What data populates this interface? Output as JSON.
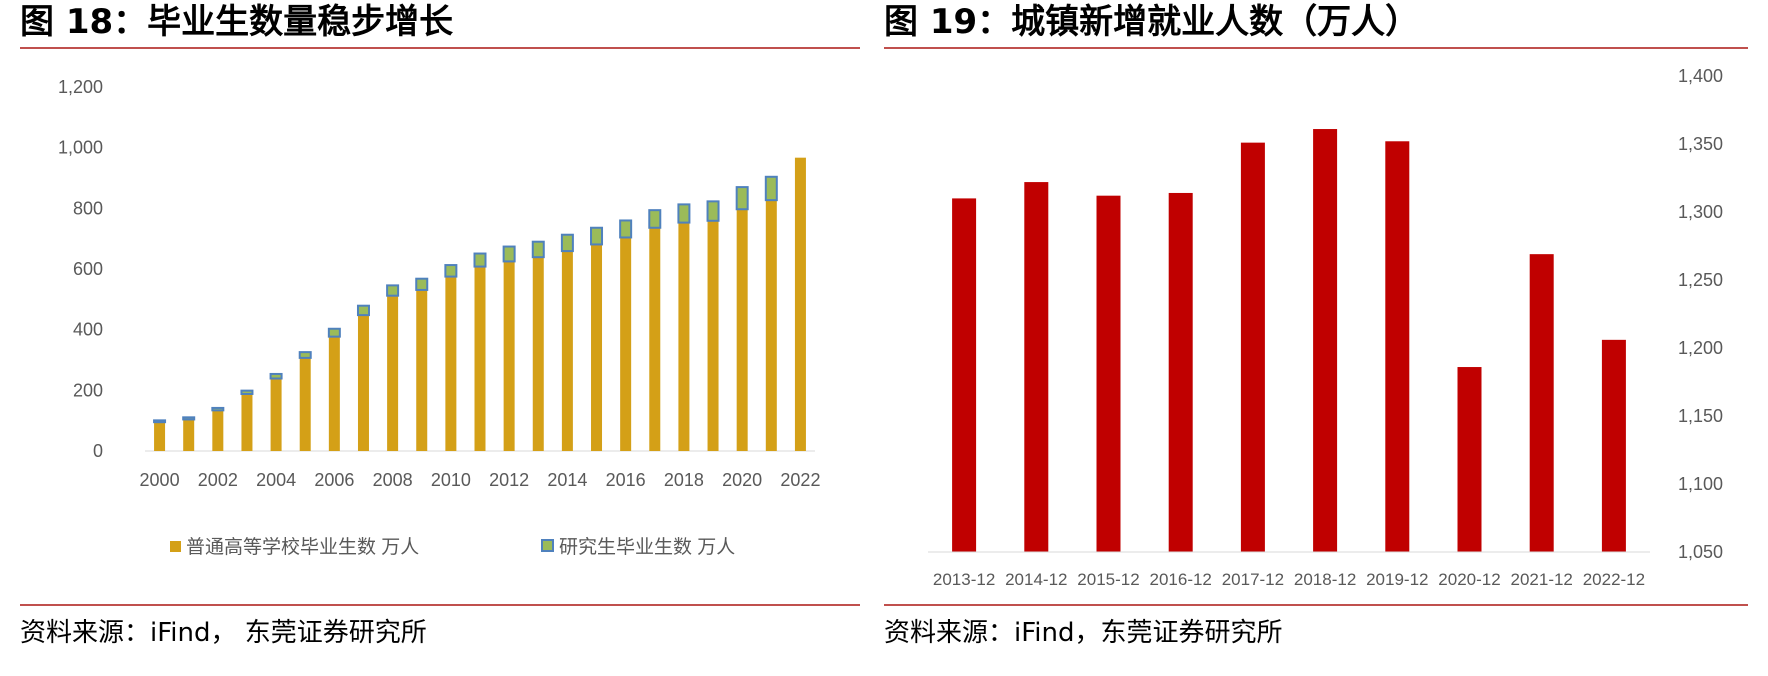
{
  "left_panel": {
    "title": "图 18：毕业生数量稳步增长",
    "source": "资料来源：iFind， 东莞证券研究所"
  },
  "right_panel": {
    "title": "图 19：城镇新增就业人数（万人）",
    "source": "资料来源：iFind，东莞证券研究所"
  },
  "colors": {
    "accent_rule": "#c0504d",
    "undergrad": "#d4a017",
    "grad_fill": "#9bbb59",
    "grad_border": "#4f81bd",
    "employment": "#c00000"
  },
  "chart_data": [
    {
      "type": "bar",
      "stacked": true,
      "title": "毕业生数量稳步增长",
      "x": [
        2000,
        2001,
        2002,
        2003,
        2004,
        2005,
        2006,
        2007,
        2008,
        2009,
        2010,
        2011,
        2012,
        2013,
        2014,
        2015,
        2016,
        2017,
        2018,
        2019,
        2020,
        2021,
        2022
      ],
      "tick_labels": [
        "2000",
        "2002",
        "2004",
        "2006",
        "2008",
        "2010",
        "2012",
        "2014",
        "2016",
        "2018",
        "2020",
        "2022"
      ],
      "series": [
        {
          "name": "普通高等学校毕业生数 万人",
          "values": [
            95,
            104,
            134,
            188,
            239,
            307,
            377,
            448,
            512,
            531,
            575,
            608,
            625,
            639,
            659,
            681,
            704,
            736,
            753,
            759,
            797,
            827,
            967
          ]
        },
        {
          "name": "研究生毕业生数 万人",
          "values": [
            6,
            7,
            8,
            11,
            15,
            19,
            26,
            31,
            34,
            37,
            38,
            43,
            49,
            51,
            54,
            55,
            56,
            58,
            60,
            64,
            73,
            77,
            0
          ]
        }
      ],
      "ylim": [
        0,
        1200
      ],
      "yticks": [
        "0",
        "200",
        "400",
        "600",
        "800",
        "1,000",
        "1,200"
      ],
      "ytick_values": [
        0,
        200,
        400,
        600,
        800,
        1000,
        1200
      ],
      "legend_position": "bottom"
    },
    {
      "type": "bar",
      "title": "城镇新增就业人数（万人）",
      "categories": [
        "2013-12",
        "2014-12",
        "2015-12",
        "2016-12",
        "2017-12",
        "2018-12",
        "2019-12",
        "2020-12",
        "2021-12",
        "2022-12"
      ],
      "values": [
        1310,
        1322,
        1312,
        1314,
        1351,
        1361,
        1352,
        1186,
        1269,
        1206
      ],
      "ylim": [
        1050,
        1400
      ],
      "yticks": [
        "1,050",
        "1,100",
        "1,150",
        "1,200",
        "1,250",
        "1,300",
        "1,350",
        "1,400"
      ],
      "ytick_values": [
        1050,
        1100,
        1150,
        1200,
        1250,
        1300,
        1350,
        1400
      ],
      "yaxis_position": "right"
    }
  ]
}
